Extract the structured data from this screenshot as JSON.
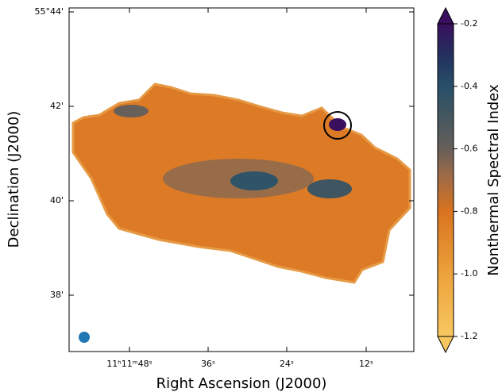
{
  "x_axis": {
    "label": "Right Ascension (J2000)",
    "ticks": [
      "11ʰ11ᵐ48ˢ",
      "36ˢ",
      "24ˢ",
      "12ˢ"
    ]
  },
  "y_axis": {
    "label": "Declination (J2000)",
    "ticks": [
      "55°44'",
      "42'",
      "40'",
      "38'"
    ]
  },
  "colorbar": {
    "label": "Nonthermal Spectral Index",
    "lim": [
      -1.2,
      -0.2
    ],
    "ticks": [
      -1.2,
      {
        "value": -1,
        "label": "-1.0"
      },
      -0.8,
      -0.6,
      -0.4,
      -0.2
    ]
  }
}
